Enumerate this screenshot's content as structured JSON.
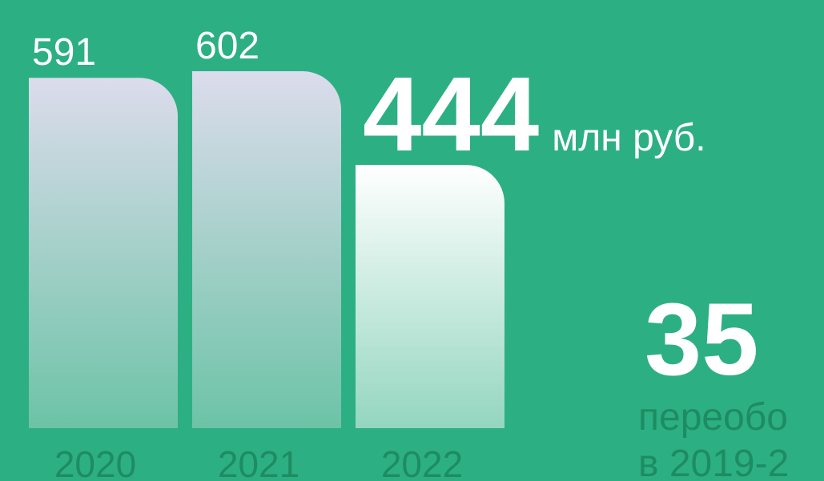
{
  "chart_data": {
    "type": "bar",
    "categories": [
      "2020",
      "2021",
      "2022"
    ],
    "values": [
      591,
      602,
      444
    ],
    "unit": "млн руб.",
    "side_number": "35",
    "side_text": [
      "переобо",
      "в 2019-2"
    ]
  }
}
